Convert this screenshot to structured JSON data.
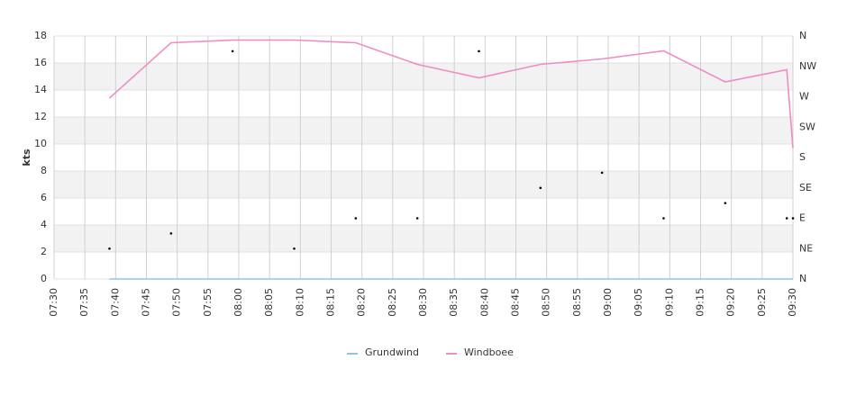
{
  "chart_data": {
    "type": "line",
    "y_label": "kts",
    "x": [
      "07:39",
      "07:49",
      "07:59",
      "08:09",
      "08:19",
      "08:29",
      "08:39",
      "08:49",
      "08:59",
      "09:09",
      "09:19",
      "09:29",
      "09:30"
    ],
    "xlim": [
      "07:30",
      "09:30"
    ],
    "xticks": [
      "07:30",
      "07:35",
      "07:40",
      "07:45",
      "07:50",
      "07:55",
      "08:00",
      "08:05",
      "08:10",
      "08:15",
      "08:20",
      "08:25",
      "08:30",
      "08:35",
      "08:40",
      "08:45",
      "08:50",
      "08:55",
      "09:00",
      "09:05",
      "09:10",
      "09:15",
      "09:20",
      "09:25",
      "09:30"
    ],
    "ylim": [
      0,
      18
    ],
    "yticks": [
      0,
      2,
      4,
      6,
      8,
      10,
      12,
      14,
      16,
      18
    ],
    "y2lim": [
      0,
      360
    ],
    "y2ticks": [
      {
        "value": 0,
        "label": "N"
      },
      {
        "value": 45,
        "label": "NE"
      },
      {
        "value": 90,
        "label": "E"
      },
      {
        "value": 135,
        "label": "SE"
      },
      {
        "value": 180,
        "label": "S"
      },
      {
        "value": 225,
        "label": "SW"
      },
      {
        "value": 270,
        "label": "W"
      },
      {
        "value": 315,
        "label": "NW"
      },
      {
        "value": 360,
        "label": "N"
      }
    ],
    "grid": true,
    "legend": "bottom",
    "series": [
      {
        "name": "Grundwind",
        "color": "#8fc3e8",
        "type": "line",
        "values": [
          0,
          0,
          0,
          0,
          0,
          0,
          0,
          0,
          0,
          0,
          0,
          0,
          0
        ]
      },
      {
        "name": "Windboee",
        "color": "#f08cc4",
        "type": "line",
        "values": [
          13.4,
          17.5,
          17.7,
          17.7,
          17.5,
          15.9,
          14.9,
          15.9,
          16.3,
          16.9,
          14.6,
          15.5,
          9.7
        ]
      },
      {
        "color": "#000000",
        "type": "scatter",
        "axis": "y2",
        "values": [
          45,
          67.5,
          337.5,
          45,
          90,
          90,
          337.5,
          135,
          157.5,
          90,
          112.5,
          90,
          90
        ]
      }
    ]
  }
}
